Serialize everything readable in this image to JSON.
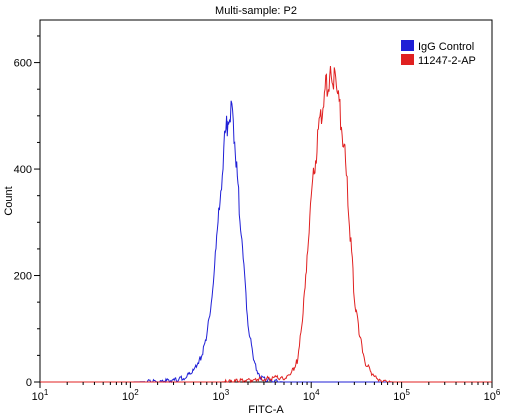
{
  "chart_data": {
    "type": "line",
    "title": "Multi-sample: P2",
    "xlabel": "FITC-A",
    "ylabel": "Count",
    "x_scale": "log",
    "xlim": [
      10,
      1000000
    ],
    "ylim": [
      0,
      680
    ],
    "x_ticks": [
      {
        "value": 10,
        "base": "10",
        "exp": "1"
      },
      {
        "value": 100,
        "base": "10",
        "exp": "2"
      },
      {
        "value": 1000,
        "base": "10",
        "exp": "3"
      },
      {
        "value": 10000,
        "base": "10",
        "exp": "4"
      },
      {
        "value": 100000,
        "base": "10",
        "exp": "5"
      },
      {
        "value": 1000000,
        "base": "10",
        "exp": "6"
      }
    ],
    "y_ticks": [
      {
        "value": 0,
        "label": "0"
      },
      {
        "value": 200,
        "label": "200"
      },
      {
        "value": 400,
        "label": "400"
      },
      {
        "value": 600,
        "label": "600"
      }
    ],
    "grid": false,
    "legend_position": "top-right",
    "series": [
      {
        "name": "IgG Control",
        "color": "#1f1fd6",
        "points": [
          [
            10,
            0
          ],
          [
            100,
            0
          ],
          [
            200,
            1
          ],
          [
            300,
            3
          ],
          [
            400,
            8
          ],
          [
            500,
            22
          ],
          [
            600,
            45
          ],
          [
            700,
            85
          ],
          [
            800,
            160
          ],
          [
            900,
            260
          ],
          [
            1000,
            360
          ],
          [
            1100,
            450
          ],
          [
            1200,
            495
          ],
          [
            1300,
            505
          ],
          [
            1400,
            470
          ],
          [
            1500,
            400
          ],
          [
            1600,
            330
          ],
          [
            1800,
            210
          ],
          [
            2000,
            110
          ],
          [
            2300,
            40
          ],
          [
            2700,
            10
          ],
          [
            3500,
            2
          ],
          [
            5000,
            0
          ],
          [
            100000,
            0
          ]
        ]
      },
      {
        "name": "11247-2-AP",
        "color": "#e02020",
        "points": [
          [
            10,
            0
          ],
          [
            1000,
            0
          ],
          [
            2000,
            3
          ],
          [
            3000,
            6
          ],
          [
            4000,
            8
          ],
          [
            5000,
            6
          ],
          [
            6000,
            15
          ],
          [
            7000,
            40
          ],
          [
            8000,
            110
          ],
          [
            9000,
            240
          ],
          [
            10000,
            340
          ],
          [
            11000,
            410
          ],
          [
            12000,
            460
          ],
          [
            13000,
            500
          ],
          [
            14000,
            535
          ],
          [
            15000,
            555
          ],
          [
            16000,
            565
          ],
          [
            17000,
            570
          ],
          [
            18000,
            575
          ],
          [
            19000,
            560
          ],
          [
            20000,
            535
          ],
          [
            22000,
            480
          ],
          [
            24000,
            410
          ],
          [
            26000,
            320
          ],
          [
            28000,
            240
          ],
          [
            30000,
            160
          ],
          [
            35000,
            80
          ],
          [
            40000,
            35
          ],
          [
            50000,
            10
          ],
          [
            60000,
            2
          ],
          [
            80000,
            0
          ],
          [
            1000000,
            0
          ]
        ]
      }
    ]
  }
}
